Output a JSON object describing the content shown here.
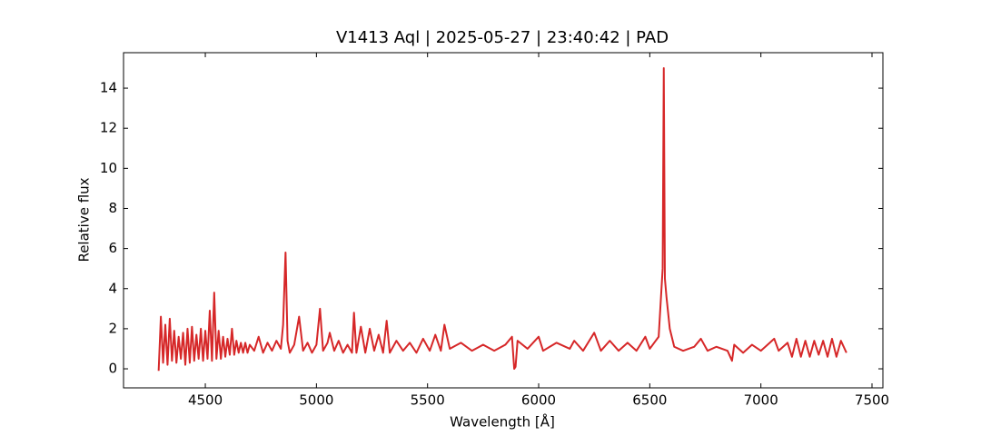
{
  "chart_data": {
    "type": "line",
    "title": "V1413 Aql | 2025-05-27 | 23:40:42 | PAD",
    "xlabel": "Wavelength [Å]",
    "ylabel": "Relative flux",
    "color": "#d62728",
    "x": [
      4290,
      4300,
      4310,
      4320,
      4330,
      4340,
      4350,
      4360,
      4370,
      4380,
      4390,
      4400,
      4410,
      4420,
      4430,
      4440,
      4450,
      4460,
      4470,
      4480,
      4490,
      4500,
      4510,
      4520,
      4530,
      4540,
      4550,
      4560,
      4570,
      4580,
      4590,
      4600,
      4610,
      4620,
      4630,
      4640,
      4650,
      4660,
      4670,
      4680,
      4690,
      4700,
      4720,
      4740,
      4760,
      4780,
      4800,
      4820,
      4840,
      4850,
      4861,
      4870,
      4880,
      4900,
      4922,
      4940,
      4960,
      4980,
      5000,
      5016,
      5030,
      5050,
      5060,
      5080,
      5100,
      5120,
      5140,
      5160,
      5169,
      5180,
      5200,
      5220,
      5240,
      5260,
      5280,
      5300,
      5316,
      5330,
      5360,
      5390,
      5420,
      5450,
      5480,
      5510,
      5535,
      5560,
      5576,
      5600,
      5650,
      5700,
      5750,
      5800,
      5850,
      5880,
      5890,
      5896,
      5905,
      5950,
      6000,
      6020,
      6080,
      6140,
      6160,
      6200,
      6250,
      6280,
      6320,
      6360,
      6400,
      6440,
      6480,
      6500,
      6520,
      6540,
      6550,
      6558,
      6563,
      6568,
      6575,
      6590,
      6610,
      6650,
      6700,
      6730,
      6760,
      6800,
      6850,
      6870,
      6880,
      6920,
      6960,
      7000,
      7060,
      7080,
      7120,
      7140,
      7160,
      7180,
      7200,
      7220,
      7240,
      7260,
      7280,
      7300,
      7320,
      7340,
      7360,
      7385
    ],
    "values": [
      -0.1,
      2.6,
      0.3,
      2.2,
      0.2,
      2.5,
      0.4,
      1.9,
      0.3,
      1.6,
      0.5,
      1.8,
      0.2,
      2.0,
      0.3,
      2.1,
      0.4,
      1.7,
      0.5,
      2.0,
      0.4,
      1.9,
      0.5,
      2.9,
      0.4,
      3.8,
      0.5,
      1.9,
      0.5,
      1.6,
      0.6,
      1.5,
      0.7,
      2.0,
      0.7,
      1.4,
      0.8,
      1.3,
      0.8,
      1.3,
      0.8,
      1.2,
      0.9,
      1.6,
      0.8,
      1.3,
      0.9,
      1.4,
      1.0,
      2.2,
      5.8,
      1.4,
      0.8,
      1.2,
      2.6,
      0.9,
      1.3,
      0.8,
      1.2,
      3.0,
      0.9,
      1.3,
      1.8,
      0.9,
      1.4,
      0.8,
      1.2,
      0.8,
      2.8,
      0.8,
      2.1,
      0.8,
      2.0,
      0.9,
      1.7,
      0.8,
      2.4,
      0.8,
      1.4,
      0.9,
      1.3,
      0.8,
      1.5,
      0.9,
      1.7,
      0.9,
      2.2,
      1.0,
      1.3,
      0.9,
      1.2,
      0.9,
      1.2,
      1.6,
      0.0,
      0.1,
      1.4,
      1.0,
      1.6,
      0.9,
      1.3,
      1.0,
      1.4,
      0.9,
      1.8,
      0.9,
      1.4,
      0.9,
      1.3,
      0.9,
      1.6,
      1.0,
      1.3,
      1.6,
      3.5,
      5.0,
      15.0,
      4.5,
      3.6,
      2.0,
      1.1,
      0.9,
      1.1,
      1.5,
      0.9,
      1.1,
      0.9,
      0.4,
      1.2,
      0.8,
      1.2,
      0.9,
      1.5,
      0.9,
      1.3,
      0.6,
      1.5,
      0.6,
      1.4,
      0.6,
      1.4,
      0.7,
      1.4,
      0.6,
      1.5,
      0.6,
      1.4,
      0.8
    ],
    "xlim": [
      4132,
      7549
    ],
    "xticks": [
      4500,
      5000,
      5500,
      6000,
      6500,
      7000,
      7500
    ],
    "ylim": [
      -0.95,
      15.77
    ],
    "yticks": [
      0,
      2,
      4,
      6,
      8,
      10,
      12,
      14
    ]
  }
}
